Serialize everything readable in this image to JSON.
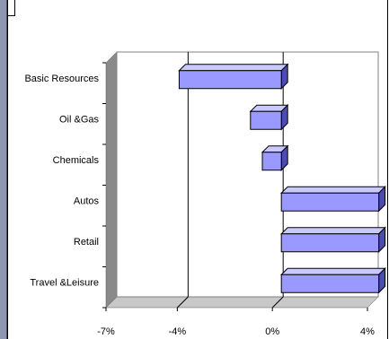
{
  "chart_data": {
    "type": "bar",
    "orientation": "horizontal",
    "three_d": true,
    "categories": [
      "Basic Resources",
      "Oil &Gas",
      "Chemicals",
      "Autos",
      "Retail",
      "Travel &Leisure"
    ],
    "series": [
      {
        "values": [
          -4.3,
          -1.3,
          -0.8,
          4.1,
          4.1,
          4.1
        ]
      }
    ],
    "x_ticks": [
      "-7%",
      "-4%",
      "0%",
      "4%"
    ],
    "xlim": [
      -7,
      4
    ],
    "grid": true,
    "bar_color": "#9999ff",
    "bar_side_color": "#4b4bb0",
    "bar_top_color": "#c9c9ff"
  }
}
